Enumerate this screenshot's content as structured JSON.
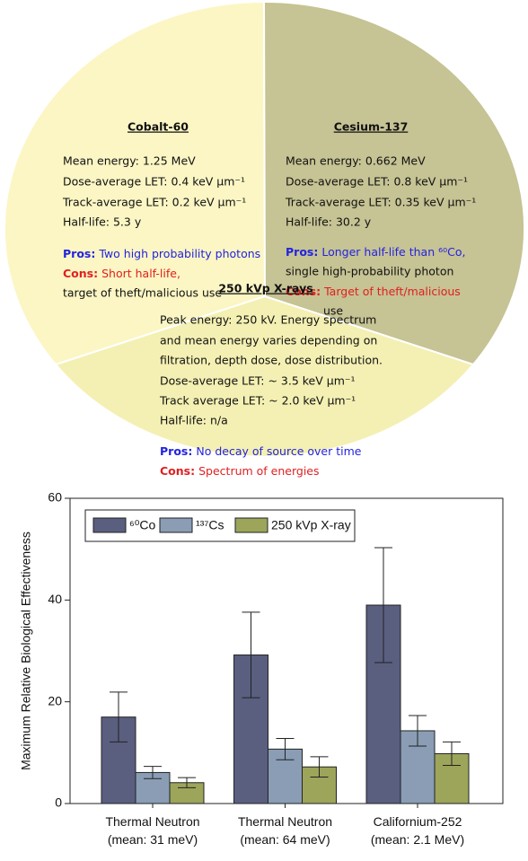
{
  "diagram": {
    "sectors": [
      {
        "title": "Cobalt-60",
        "color": "#fbf6c4",
        "lines": [
          "Mean energy: 1.25 MeV",
          "Dose-average LET: 0.4 keV μm⁻¹",
          "Track-average LET: 0.2 keV μm⁻¹",
          "Half-life: 5.3 y"
        ],
        "pros": {
          "label": "Pros:",
          "lines": [
            "Two high probability photons"
          ]
        },
        "cons": {
          "label": "Cons:",
          "lines": [
            "Short half-life,",
            "target of theft/malicious use"
          ]
        }
      },
      {
        "title": "Cesium-137",
        "color": "#c6c394",
        "lines": [
          "Mean energy: 0.662 MeV",
          "Dose-average LET: 0.8 keV μm⁻¹",
          "Track-average LET: 0.35 keV μm⁻¹",
          "Half-life: 30.2 y"
        ],
        "pros": {
          "label": "Pros:",
          "lines": [
            "Longer  half-life than ⁶⁰Co,",
            "single high-probability photon"
          ]
        },
        "cons": {
          "label": "Cons:",
          "lines": [
            "Target of theft/malicious",
            "use"
          ]
        }
      },
      {
        "title": "250 kVp X-rays",
        "color": "#f4f0b3",
        "lines": [
          "Peak energy: 250 kV. Energy spectrum",
          "and mean energy varies depending on",
          "filtration, depth dose, dose distribution.",
          "Dose-average LET: ~ 3.5 keV μm⁻¹",
          "Track average LET: ~ 2.0 keV μm⁻¹",
          "Half-life: n/a"
        ],
        "pros": {
          "label": "Pros:",
          "lines": [
            "No decay of source over time"
          ]
        },
        "cons": {
          "label": "Cons:",
          "lines": [
            "Spectrum of energies"
          ]
        }
      }
    ],
    "pros_color": "#2323e0",
    "cons_color": "#e02020"
  },
  "chart_data": {
    "type": "bar",
    "y_label": "Maximum Relative Biological Effectiveness",
    "categories": [
      "Thermal Neutron\n(mean: 31 meV)",
      "Thermal Neutron\n(mean: 64 meV)",
      "Californium-252\n(mean: 2.1 MeV)"
    ],
    "series": [
      {
        "name": "⁶⁰Co",
        "color": "#5a5f80",
        "values": [
          17,
          29.2,
          39
        ],
        "errors": [
          4.9,
          8.4,
          11.3
        ]
      },
      {
        "name": "¹³⁷Cs",
        "color": "#8a9db5",
        "values": [
          6.1,
          10.7,
          14.3
        ],
        "errors": [
          1.2,
          2.1,
          3
        ]
      },
      {
        "name": "250 kVp X-ray",
        "color": "#9ca55a",
        "values": [
          4.1,
          7.2,
          9.8
        ],
        "errors": [
          1,
          2,
          2.3
        ]
      }
    ],
    "ylim": [
      0,
      60
    ],
    "yticks": [
      0,
      20,
      40,
      60
    ],
    "legend": "upper left"
  }
}
